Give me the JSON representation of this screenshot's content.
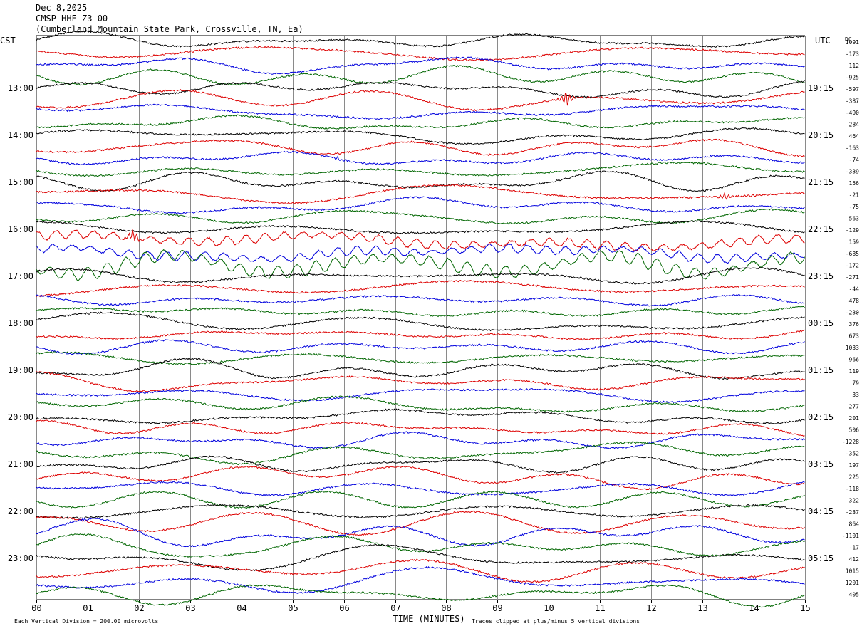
{
  "header": {
    "date": "Dec 8,2025",
    "station": "CMSP HHE Z3 00",
    "location": "(Cumberland Mountain State Park, Crossville, TN, Ea)"
  },
  "chart_data": {
    "type": "line",
    "title": "",
    "xlabel": "TIME (MINUTES)",
    "left_axis_label": "CST",
    "right_axis_label": "UTC",
    "dc_label": "DC",
    "x_ticks": [
      "00",
      "01",
      "02",
      "03",
      "04",
      "05",
      "06",
      "07",
      "08",
      "09",
      "10",
      "11",
      "12",
      "13",
      "14",
      "15"
    ],
    "xlim": [
      0,
      15
    ],
    "left_hour_labels": [
      "13:00",
      "14:00",
      "15:00",
      "16:00",
      "17:00",
      "18:00",
      "19:00",
      "20:00",
      "21:00",
      "22:00",
      "23:00"
    ],
    "right_hour_labels": [
      "19:15",
      "20:15",
      "21:15",
      "22:15",
      "23:15",
      "00:15",
      "01:15",
      "02:15",
      "03:15",
      "04:15",
      "05:15"
    ],
    "dc_offsets": [
      "1091",
      "-173",
      "112",
      "-925",
      "-597",
      "-387",
      "-490",
      "284",
      "464",
      "-163",
      "-74",
      "-339",
      "156",
      "-21",
      "-75",
      "563",
      "-129",
      "159",
      "-685",
      "-172",
      "-271",
      "-44",
      "478",
      "-230",
      "376",
      "673",
      "1033",
      "966",
      "119",
      "79",
      "33",
      "277",
      "201",
      "506",
      "-1228",
      "-352",
      "197",
      "225",
      "-118",
      "322",
      "-237",
      "864",
      "-1101",
      "-17",
      "412",
      "1015",
      "1201",
      "405"
    ],
    "trace_colors": [
      "#000000",
      "#dd0000",
      "#0000dd",
      "#006600"
    ],
    "trace_count": 48,
    "rows_per_hour": 4,
    "minutes_per_row": 15,
    "footer_left": "Each Vertical Division =  200.00 microvolts",
    "footer_right": "Traces clipped at plus/minus 5 vertical divisions",
    "events": [
      {
        "row": 5,
        "minute": 10.35,
        "amplitude": 12
      },
      {
        "row": 13,
        "minute": 13.45,
        "amplitude": 5
      },
      {
        "row": 10,
        "minute": 5.9,
        "amplitude": 3
      },
      {
        "row": 17,
        "minute": 1.9,
        "amplitude": 10
      }
    ]
  }
}
